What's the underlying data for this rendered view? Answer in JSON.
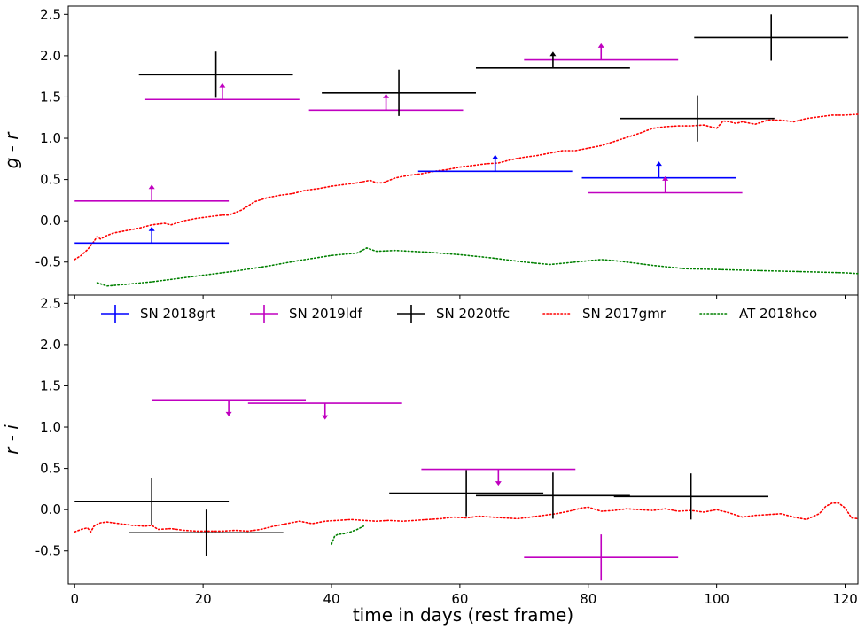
{
  "chart_data": {
    "type": "scatter",
    "xlabel": "time in days (rest frame)",
    "xlim": [
      -1,
      122
    ],
    "xticks": [
      0,
      20,
      40,
      60,
      80,
      100,
      120
    ],
    "legend": {
      "placement": "top of lower panel",
      "entries": [
        {
          "name": "SN 2018grt",
          "color": "#0000ff",
          "style": "errorbar"
        },
        {
          "name": "SN 2019ldf",
          "color": "#c000c0",
          "style": "errorbar"
        },
        {
          "name": "SN 2020tfc",
          "color": "#000000",
          "style": "errorbar"
        },
        {
          "name": "SN 2017gmr",
          "color": "#ff0000",
          "style": "dotted"
        },
        {
          "name": "AT 2018hco",
          "color": "#008000",
          "style": "dotted"
        }
      ]
    },
    "panels": [
      {
        "ylabel": "g - r",
        "ylim": [
          -0.9,
          2.6
        ],
        "yticks": [
          "-0.5",
          "0.0",
          "0.5",
          "1.0",
          "1.5",
          "2.0",
          "2.5"
        ],
        "points": [
          {
            "series": "SN 2018grt",
            "x": 12,
            "y": -0.27,
            "xerr": 12,
            "limit": "lower"
          },
          {
            "series": "SN 2018grt",
            "x": 65.5,
            "y": 0.6,
            "xerr": 12,
            "limit": "lower"
          },
          {
            "series": "SN 2018grt",
            "x": 91,
            "y": 0.52,
            "xerr": 12,
            "limit": "lower"
          },
          {
            "series": "SN 2019ldf",
            "x": 12,
            "y": 0.24,
            "xerr": 12,
            "limit": "lower"
          },
          {
            "series": "SN 2019ldf",
            "x": 23,
            "y": 1.47,
            "xerr": 12,
            "limit": "lower"
          },
          {
            "series": "SN 2019ldf",
            "x": 48.5,
            "y": 1.34,
            "xerr": 12,
            "limit": "lower"
          },
          {
            "series": "SN 2019ldf",
            "x": 82,
            "y": 1.95,
            "xerr": 12,
            "limit": "lower"
          },
          {
            "series": "SN 2019ldf",
            "x": 92,
            "y": 0.34,
            "xerr": 12,
            "limit": "lower"
          },
          {
            "series": "SN 2020tfc",
            "x": 22,
            "y": 1.77,
            "xerr": 12,
            "yerr": 0.28
          },
          {
            "series": "SN 2020tfc",
            "x": 50.5,
            "y": 1.55,
            "xerr": 12,
            "yerr": 0.28
          },
          {
            "series": "SN 2020tfc",
            "x": 74.5,
            "y": 1.85,
            "xerr": 12,
            "limit": "lower"
          },
          {
            "series": "SN 2020tfc",
            "x": 97,
            "y": 1.24,
            "xerr": 12,
            "yerr": 0.28
          },
          {
            "series": "SN 2020tfc",
            "x": 108.5,
            "y": 2.22,
            "xerr": 12,
            "yerr": 0.28
          }
        ],
        "curves": [
          {
            "series": "SN 2017gmr",
            "x": [
              0,
              1,
              2,
              3,
              3.5,
              4,
              5,
              6,
              8,
              10,
              12,
              14,
              15,
              17,
              19,
              21,
              23,
              24,
              26,
              28,
              30,
              32,
              34,
              36,
              38,
              40,
              42,
              44,
              46,
              47,
              48,
              50,
              52,
              54,
              56,
              58,
              60,
              62,
              64,
              66,
              68,
              70,
              72,
              74,
              76,
              78,
              80,
              82,
              84,
              86,
              88,
              90,
              92,
              94,
              96,
              98,
              100,
              101,
              102,
              103,
              104,
              106,
              108,
              110,
              112,
              114,
              116,
              118,
              120,
              122
            ],
            "y": [
              -0.47,
              -0.42,
              -0.35,
              -0.25,
              -0.19,
              -0.22,
              -0.18,
              -0.15,
              -0.12,
              -0.09,
              -0.05,
              -0.03,
              -0.05,
              0.0,
              0.03,
              0.05,
              0.07,
              0.07,
              0.13,
              0.23,
              0.28,
              0.31,
              0.33,
              0.37,
              0.39,
              0.42,
              0.44,
              0.46,
              0.49,
              0.46,
              0.46,
              0.52,
              0.55,
              0.57,
              0.6,
              0.62,
              0.65,
              0.67,
              0.69,
              0.7,
              0.74,
              0.77,
              0.79,
              0.82,
              0.85,
              0.85,
              0.88,
              0.91,
              0.96,
              1.01,
              1.06,
              1.12,
              1.14,
              1.15,
              1.15,
              1.16,
              1.12,
              1.21,
              1.2,
              1.18,
              1.2,
              1.17,
              1.22,
              1.22,
              1.2,
              1.24,
              1.26,
              1.28,
              1.28,
              1.29
            ]
          },
          {
            "series": "AT 2018hco",
            "x": [
              3.5,
              5,
              8,
              12,
              16,
              20,
              25,
              30,
              35,
              40,
              44,
              45.5,
              47,
              50,
              55,
              60,
              65,
              70,
              74,
              78,
              82,
              85,
              90,
              95,
              100,
              105,
              110,
              115,
              120,
              122
            ],
            "y": [
              -0.75,
              -0.79,
              -0.77,
              -0.74,
              -0.7,
              -0.66,
              -0.61,
              -0.55,
              -0.48,
              -0.42,
              -0.39,
              -0.33,
              -0.37,
              -0.36,
              -0.38,
              -0.41,
              -0.45,
              -0.5,
              -0.53,
              -0.5,
              -0.47,
              -0.49,
              -0.54,
              -0.58,
              -0.59,
              -0.6,
              -0.61,
              -0.62,
              -0.63,
              -0.64
            ]
          }
        ]
      },
      {
        "ylabel": "r - i",
        "ylim": [
          -0.9,
          2.6
        ],
        "yticks": [
          "-0.5",
          "0.0",
          "0.5",
          "1.0",
          "1.5",
          "2.0",
          "2.5"
        ],
        "points": [
          {
            "series": "SN 2019ldf",
            "x": 24,
            "y": 1.33,
            "xerr": 12,
            "limit": "upper"
          },
          {
            "series": "SN 2019ldf",
            "x": 39,
            "y": 1.29,
            "xerr": 12,
            "limit": "upper"
          },
          {
            "series": "SN 2019ldf",
            "x": 66,
            "y": 0.49,
            "xerr": 12,
            "limit": "upper"
          },
          {
            "series": "SN 2019ldf",
            "x": 82,
            "y": -0.58,
            "xerr": 12,
            "yerr": 0.28
          },
          {
            "series": "SN 2020tfc",
            "x": 12,
            "y": 0.1,
            "xerr": 12,
            "yerr": 0.28
          },
          {
            "series": "SN 2020tfc",
            "x": 20.5,
            "y": -0.28,
            "xerr": 12,
            "yerr": 0.28
          },
          {
            "series": "SN 2020tfc",
            "x": 61,
            "y": 0.2,
            "xerr": 12,
            "yerr": 0.28
          },
          {
            "series": "SN 2020tfc",
            "x": 74.5,
            "y": 0.17,
            "xerr": 12,
            "yerr": 0.28
          },
          {
            "series": "SN 2020tfc",
            "x": 96,
            "y": 0.16,
            "xerr": 12,
            "yerr": 0.28
          }
        ],
        "curves": [
          {
            "series": "SN 2017gmr",
            "x": [
              0,
              1,
              2,
              2.5,
              3,
              4,
              5,
              7,
              9,
              11,
              12,
              13,
              15,
              17,
              19,
              21,
              23,
              25,
              27,
              29,
              31,
              33,
              35,
              37,
              39,
              41,
              43,
              45,
              47,
              49,
              51,
              53,
              55,
              57,
              59,
              61,
              63,
              65,
              67,
              69,
              71,
              73,
              75,
              77,
              79,
              80,
              82,
              84,
              86,
              88,
              90,
              92,
              94,
              96,
              98,
              100,
              102,
              104,
              106,
              108,
              110,
              112,
              114,
              116,
              117,
              118,
              119,
              120,
              121,
              122
            ],
            "y": [
              -0.27,
              -0.24,
              -0.22,
              -0.27,
              -0.2,
              -0.16,
              -0.15,
              -0.17,
              -0.19,
              -0.2,
              -0.19,
              -0.24,
              -0.23,
              -0.25,
              -0.26,
              -0.26,
              -0.26,
              -0.25,
              -0.26,
              -0.24,
              -0.2,
              -0.17,
              -0.14,
              -0.17,
              -0.14,
              -0.13,
              -0.12,
              -0.13,
              -0.14,
              -0.13,
              -0.14,
              -0.13,
              -0.12,
              -0.11,
              -0.09,
              -0.1,
              -0.08,
              -0.09,
              -0.1,
              -0.11,
              -0.09,
              -0.07,
              -0.05,
              -0.02,
              0.02,
              0.03,
              -0.02,
              -0.01,
              0.01,
              0.0,
              -0.01,
              0.01,
              -0.02,
              -0.01,
              -0.03,
              0.0,
              -0.04,
              -0.09,
              -0.07,
              -0.06,
              -0.05,
              -0.09,
              -0.12,
              -0.05,
              0.04,
              0.08,
              0.08,
              0.02,
              -0.1,
              -0.11
            ]
          },
          {
            "series": "AT 2018hco",
            "x": [
              40,
              40.5,
              41,
              42,
              43,
              44,
              45
            ],
            "y": [
              -0.42,
              -0.32,
              -0.3,
              -0.29,
              -0.27,
              -0.24,
              -0.2
            ]
          }
        ]
      }
    ]
  }
}
